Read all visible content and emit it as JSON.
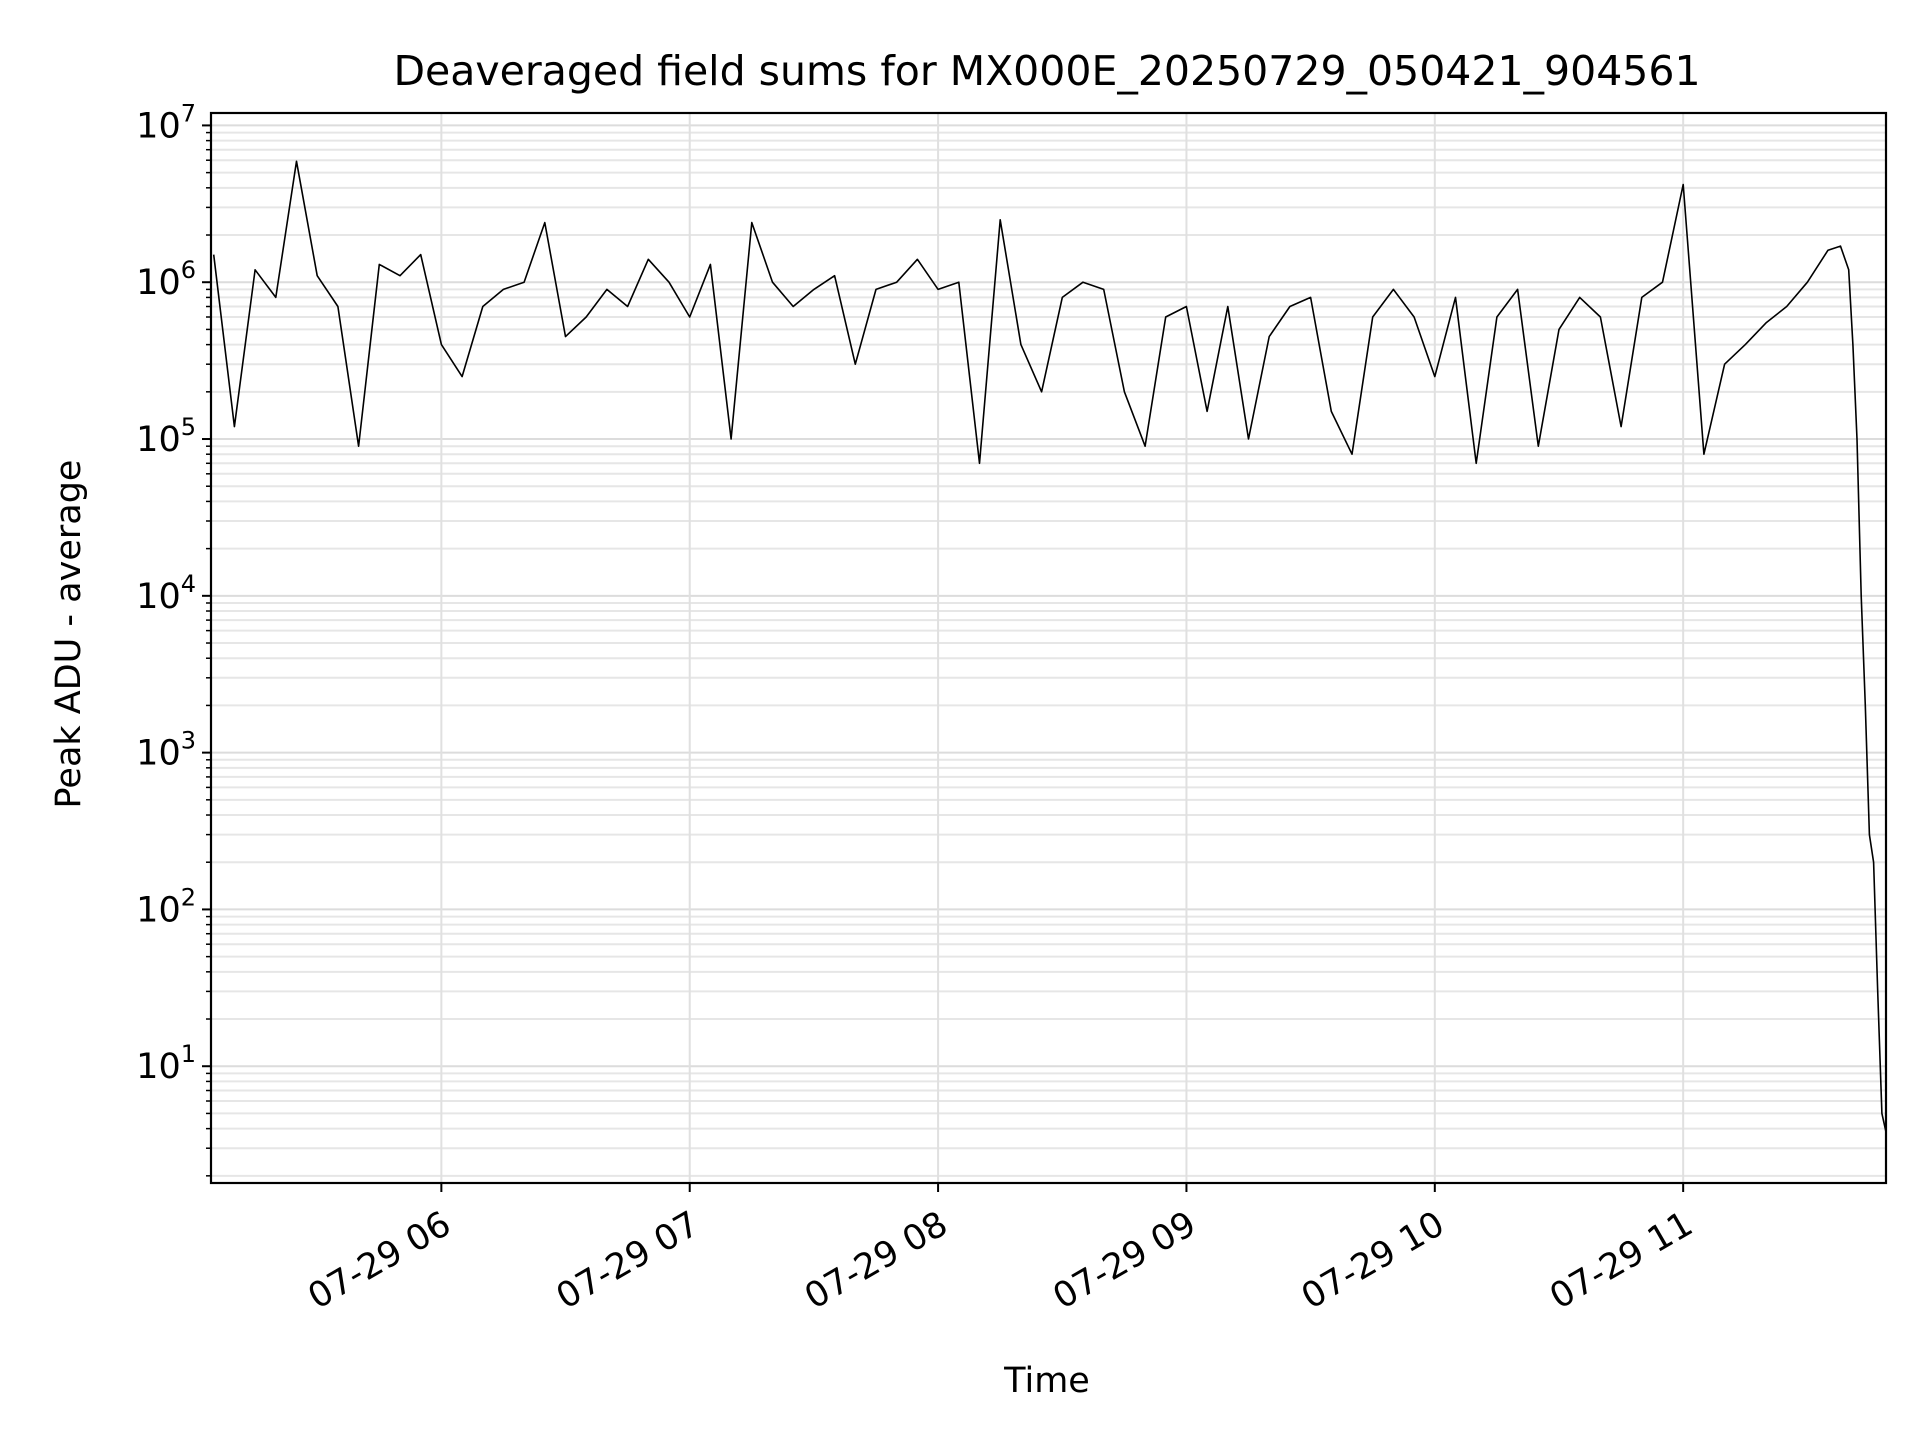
{
  "chart_data": {
    "type": "line",
    "title": "Deaveraged field sums for MX000E_20250729_050421_904561",
    "xlabel": "Time",
    "ylabel": "Peak ADU - average",
    "yscale": "log",
    "ylim": [
      1.8,
      12000000
    ],
    "xlim": [
      "2025-07-29 05:04:21",
      "2025-07-29 11:49:00"
    ],
    "grid": "major and minor, light grey",
    "line_color": "#000000",
    "x_ticks": [
      {
        "value": "2025-07-29 06:00",
        "label": "07-29 06"
      },
      {
        "value": "2025-07-29 07:00",
        "label": "07-29 07"
      },
      {
        "value": "2025-07-29 08:00",
        "label": "07-29 08"
      },
      {
        "value": "2025-07-29 09:00",
        "label": "07-29 09"
      },
      {
        "value": "2025-07-29 10:00",
        "label": "07-29 10"
      },
      {
        "value": "2025-07-29 11:00",
        "label": "07-29 11"
      }
    ],
    "y_ticks": [
      {
        "value": 10,
        "base": "10",
        "exp": "1"
      },
      {
        "value": 100,
        "base": "10",
        "exp": "2"
      },
      {
        "value": 1000,
        "base": "10",
        "exp": "3"
      },
      {
        "value": 10000,
        "base": "10",
        "exp": "4"
      },
      {
        "value": 100000,
        "base": "10",
        "exp": "5"
      },
      {
        "value": 1000000,
        "base": "10",
        "exp": "6"
      },
      {
        "value": 10000000,
        "base": "10",
        "exp": "7"
      }
    ],
    "series": [
      {
        "x": [
          "2025-07-29 05:05",
          "2025-07-29 05:10",
          "2025-07-29 05:15",
          "2025-07-29 05:20",
          "2025-07-29 05:25",
          "2025-07-29 05:30",
          "2025-07-29 05:35",
          "2025-07-29 05:40",
          "2025-07-29 05:45",
          "2025-07-29 05:50",
          "2025-07-29 05:55",
          "2025-07-29 06:00",
          "2025-07-29 06:05",
          "2025-07-29 06:10",
          "2025-07-29 06:15",
          "2025-07-29 06:20",
          "2025-07-29 06:25",
          "2025-07-29 06:30",
          "2025-07-29 06:35",
          "2025-07-29 06:40",
          "2025-07-29 06:45",
          "2025-07-29 06:50",
          "2025-07-29 06:55",
          "2025-07-29 07:00",
          "2025-07-29 07:05",
          "2025-07-29 07:10",
          "2025-07-29 07:15",
          "2025-07-29 07:20",
          "2025-07-29 07:25",
          "2025-07-29 07:30",
          "2025-07-29 07:35",
          "2025-07-29 07:40",
          "2025-07-29 07:45",
          "2025-07-29 07:50",
          "2025-07-29 07:55",
          "2025-07-29 08:00",
          "2025-07-29 08:05",
          "2025-07-29 08:10",
          "2025-07-29 08:15",
          "2025-07-29 08:20",
          "2025-07-29 08:25",
          "2025-07-29 08:30",
          "2025-07-29 08:35",
          "2025-07-29 08:40",
          "2025-07-29 08:45",
          "2025-07-29 08:50",
          "2025-07-29 08:55",
          "2025-07-29 09:00",
          "2025-07-29 09:05",
          "2025-07-29 09:10",
          "2025-07-29 09:15",
          "2025-07-29 09:20",
          "2025-07-29 09:25",
          "2025-07-29 09:30",
          "2025-07-29 09:35",
          "2025-07-29 09:40",
          "2025-07-29 09:45",
          "2025-07-29 09:50",
          "2025-07-29 09:55",
          "2025-07-29 10:00",
          "2025-07-29 10:05",
          "2025-07-29 10:10",
          "2025-07-29 10:15",
          "2025-07-29 10:20",
          "2025-07-29 10:25",
          "2025-07-29 10:30",
          "2025-07-29 10:35",
          "2025-07-29 10:40",
          "2025-07-29 10:45",
          "2025-07-29 10:50",
          "2025-07-29 10:55",
          "2025-07-29 11:00",
          "2025-07-29 11:05",
          "2025-07-29 11:10",
          "2025-07-29 11:15",
          "2025-07-29 11:20",
          "2025-07-29 11:25",
          "2025-07-29 11:30",
          "2025-07-29 11:35",
          "2025-07-29 11:38",
          "2025-07-29 11:40",
          "2025-07-29 11:41",
          "2025-07-29 11:42",
          "2025-07-29 11:43",
          "2025-07-29 11:44",
          "2025-07-29 11:45",
          "2025-07-29 11:46",
          "2025-07-29 11:47",
          "2025-07-29 11:48",
          "2025-07-29 11:49"
        ],
        "y": [
          1500000,
          120000,
          1200000,
          800000,
          5900000,
          1100000,
          700000,
          90000,
          1300000,
          1100000,
          1500000,
          400000,
          250000,
          700000,
          900000,
          1000000,
          2400000,
          450000,
          600000,
          900000,
          700000,
          1400000,
          1000000,
          600000,
          1300000,
          100000,
          2400000,
          1000000,
          700000,
          900000,
          1100000,
          300000,
          900000,
          1000000,
          1400000,
          900000,
          1000000,
          70000,
          2500000,
          400000,
          200000,
          800000,
          1000000,
          900000,
          200000,
          90000,
          600000,
          700000,
          150000,
          700000,
          100000,
          450000,
          700000,
          800000,
          150000,
          80000,
          600000,
          900000,
          600000,
          250000,
          800000,
          70000,
          600000,
          900000,
          90000,
          500000,
          800000,
          600000,
          120000,
          800000,
          1000000,
          4200000,
          80000,
          300000,
          400000,
          550000,
          700000,
          1000000,
          1600000,
          1700000,
          1200000,
          400000,
          100000,
          10000,
          2000,
          300,
          200,
          30,
          5,
          3.8
        ]
      }
    ]
  }
}
